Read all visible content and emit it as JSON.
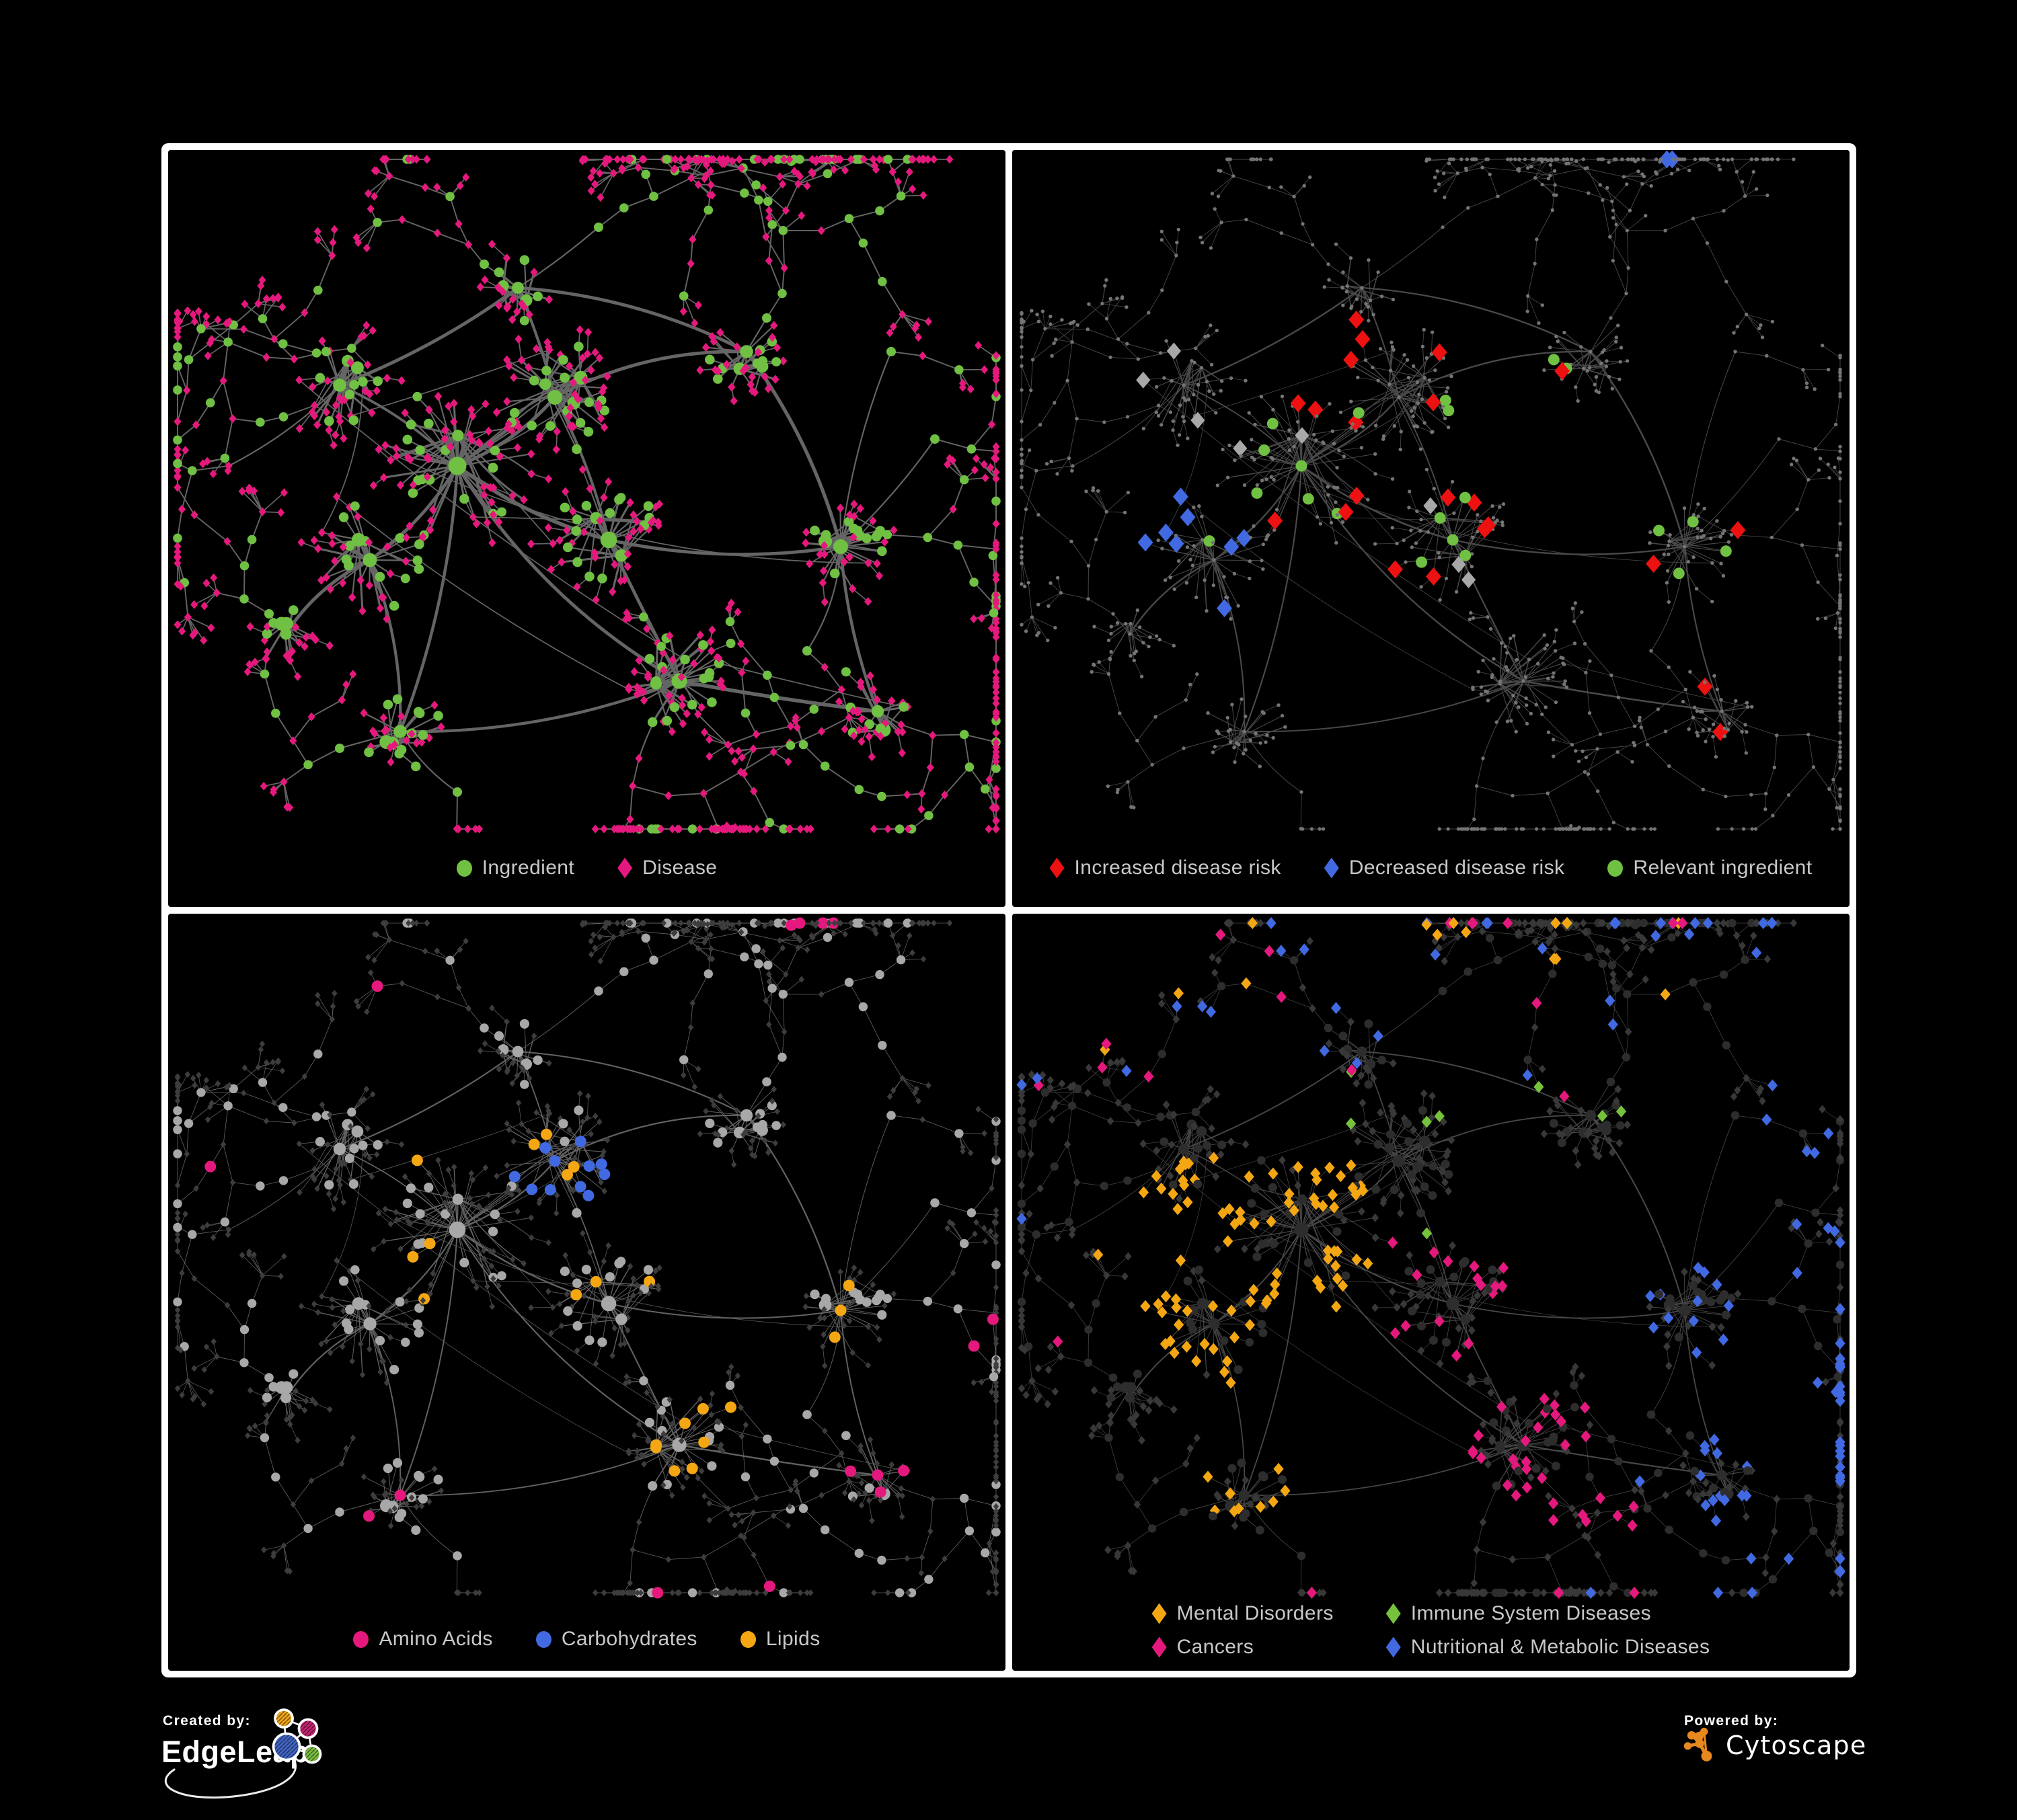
{
  "canvas": {
    "background": "#000000",
    "frame_color": "#ffffff"
  },
  "panels": [
    {
      "id": "p1",
      "name": "ingredient-disease-network",
      "legend": [
        {
          "label": "Ingredient",
          "shape": "circle",
          "color": "#70c043"
        },
        {
          "label": "Disease",
          "shape": "diamond",
          "color": "#e5197d"
        }
      ]
    },
    {
      "id": "p2",
      "name": "disease-risk-network",
      "legend": [
        {
          "label": "Increased disease risk",
          "shape": "diamond",
          "color": "#ed1111"
        },
        {
          "label": "Decreased disease risk",
          "shape": "diamond",
          "color": "#4169e1"
        },
        {
          "label": "Relevant ingredient",
          "shape": "circle",
          "color": "#70c043"
        }
      ]
    },
    {
      "id": "p3",
      "name": "nutrient-class-network",
      "legend": [
        {
          "label": "Amino Acids",
          "shape": "circle",
          "color": "#e5197d"
        },
        {
          "label": "Carbohydrates",
          "shape": "circle",
          "color": "#4169e1"
        },
        {
          "label": "Lipids",
          "shape": "circle",
          "color": "#f4a713"
        }
      ]
    },
    {
      "id": "p4",
      "name": "disease-class-network",
      "legend": [
        {
          "label": "Mental Disorders",
          "shape": "diamond",
          "color": "#f4a713"
        },
        {
          "label": "Immune System Diseases",
          "shape": "diamond",
          "color": "#76c23d"
        },
        {
          "label": "Cancers",
          "shape": "diamond",
          "color": "#e5197d"
        },
        {
          "label": "Nutritional & Metabolic Diseases",
          "shape": "diamond",
          "color": "#4169e1"
        }
      ]
    }
  ],
  "styles": {
    "p1": {
      "edge": "#6e6e6e",
      "edgeScale": 2.4,
      "edgeOpacity": 0.92,
      "disease": "#e5197d",
      "ingredient": "#70c043"
    },
    "p2": {
      "edge": "#565656",
      "edgeScale": 1.15,
      "edgeOpacity": 0.85,
      "base": "#747474",
      "increased": "#ed1111",
      "decreased": "#4169e1",
      "neutral": "#a8a8a8",
      "relevant": "#70c043"
    },
    "p3": {
      "edge": "#7b7b7b",
      "edgeScale": 1.05,
      "edgeOpacity": 0.8,
      "ingredient": "#a8a8a8",
      "disease": "#3d3d3d",
      "amino": "#e5197d",
      "carbo": "#4169e1",
      "lipid": "#f4a713"
    },
    "p4": {
      "edge": "#8e8e8e",
      "edgeScale": 0.95,
      "edgeOpacity": 0.5,
      "disease": "#383838",
      "ingredient": "#2d2d2d",
      "mental": "#f4a713",
      "immune": "#76c23d",
      "cancer": "#e5197d",
      "nutritional": "#4169e1"
    }
  },
  "footer": {
    "created_by_label": "Created by:",
    "created_by_name": "EdgeLeap",
    "powered_by_label": "Powered by:",
    "powered_by_name": "Cytoscape",
    "cytoscape_orange": "#e8891f",
    "edgeleap_colors": {
      "orange": "#f2a71b",
      "pink": "#c72572",
      "blue": "#4467c6",
      "green": "#7cc242"
    }
  },
  "legend_text_color": "#c8c8c8"
}
